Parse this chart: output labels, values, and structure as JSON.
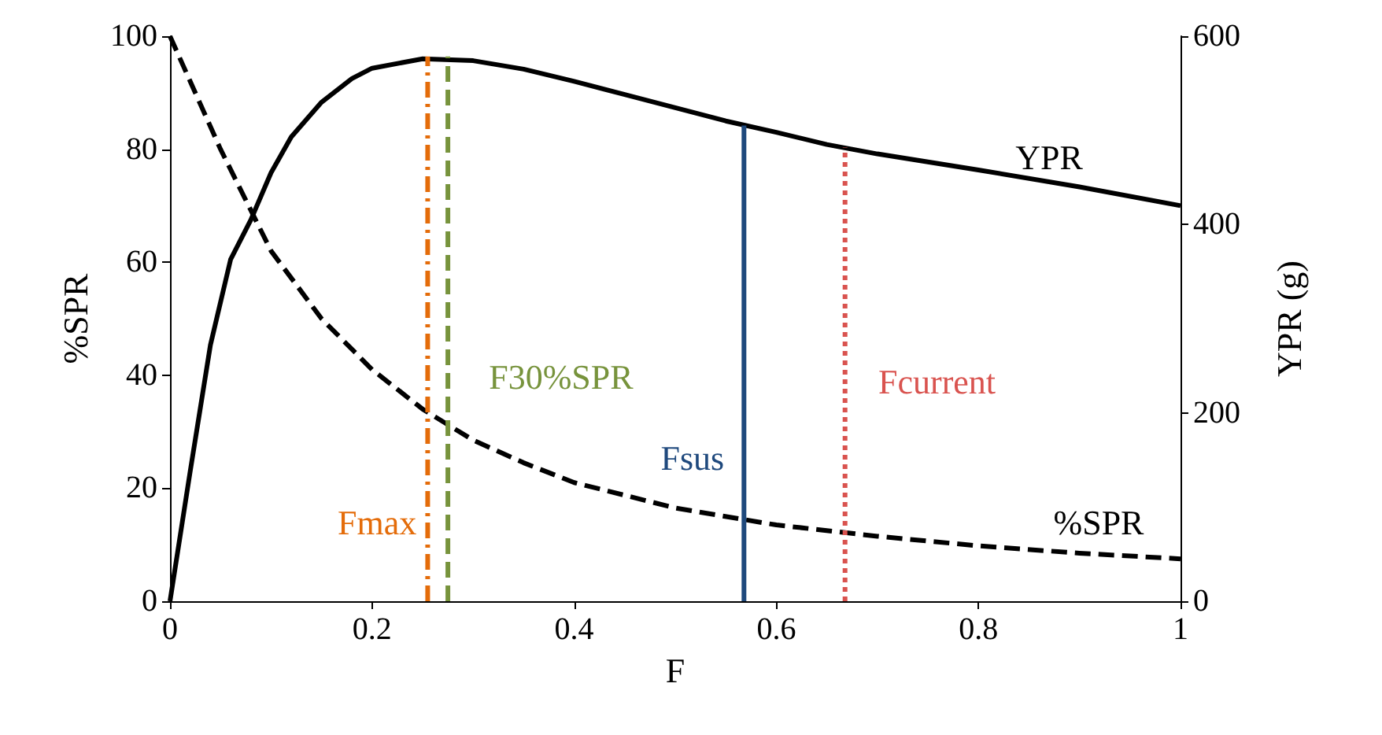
{
  "chart_data": {
    "type": "line",
    "xlabel": "F",
    "ylabel": "%SPR",
    "y2label": "YPR (g)",
    "xlim": [
      0,
      1
    ],
    "xticks": [
      0,
      0.2,
      0.4,
      0.6,
      0.8,
      1
    ],
    "ylim": [
      0,
      100
    ],
    "yticks": [
      0,
      20,
      40,
      60,
      80,
      100
    ],
    "y2lim": [
      0,
      600
    ],
    "y2ticks": [
      0,
      200,
      400,
      600
    ],
    "grid": false,
    "legend": false,
    "marker": "none",
    "series": [
      {
        "name": "YPR",
        "axis": "y2",
        "color": "#000000",
        "line_style": "solid",
        "x": [
          0,
          0.02,
          0.04,
          0.06,
          0.08,
          0.1,
          0.12,
          0.15,
          0.18,
          0.2,
          0.25,
          0.3,
          0.35,
          0.4,
          0.45,
          0.5,
          0.55,
          0.6,
          0.65,
          0.7,
          0.8,
          0.9,
          1
        ],
        "values": [
          0,
          138,
          272,
          363,
          405,
          455,
          493,
          530,
          555,
          566,
          576,
          574,
          565,
          552,
          538,
          524,
          510,
          498,
          485,
          475,
          458,
          440,
          420
        ]
      },
      {
        "name": "%SPR",
        "color": "#000000",
        "line_style": "dashed",
        "x": [
          0,
          0.05,
          0.1,
          0.15,
          0.2,
          0.25,
          0.3,
          0.35,
          0.4,
          0.5,
          0.6,
          0.7,
          0.8,
          0.9,
          1
        ],
        "values": [
          100,
          80,
          62,
          50,
          41,
          34,
          28.5,
          24.5,
          21,
          16.5,
          13.5,
          11.5,
          9.8,
          8.5,
          7.5
        ]
      },
      {
        "name": "Fmax",
        "color": "#e46c0a",
        "line_style": "dashdot",
        "x": [
          0.255,
          0.255
        ],
        "values": [
          0,
          96.4
        ]
      },
      {
        "name": "F30%SPR",
        "color": "#77933c",
        "line_style": "dashed",
        "x": [
          0.275,
          0.275
        ],
        "values": [
          0,
          96.4
        ]
      },
      {
        "name": "Fsus",
        "color": "#1f497d",
        "line_style": "solid",
        "x": [
          0.568,
          0.568
        ],
        "values": [
          0,
          84.2
        ]
      },
      {
        "name": "Fcurrent",
        "color": "#d9534f",
        "line_style": "dotted",
        "x": [
          0.668,
          0.668
        ],
        "values": [
          0,
          80.3
        ]
      }
    ]
  }
}
